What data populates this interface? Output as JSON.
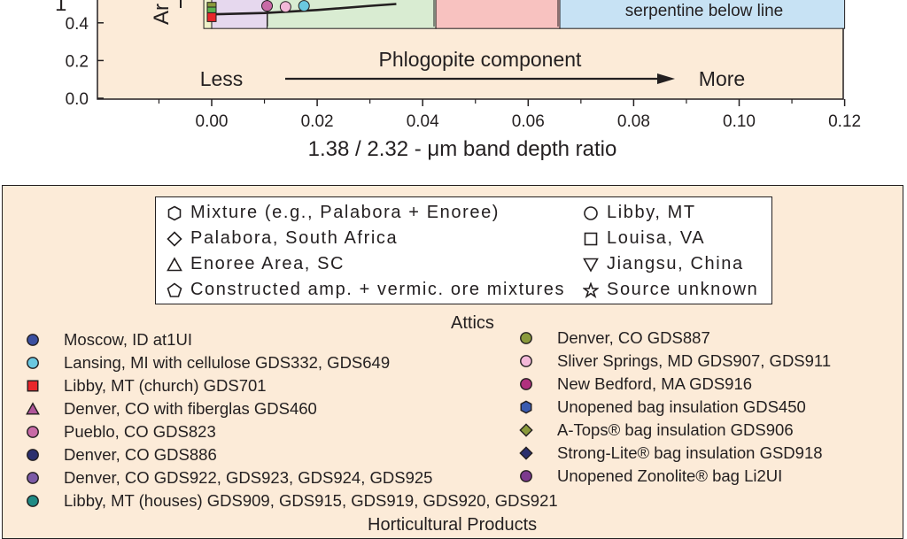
{
  "chart_data": {
    "type": "scatter",
    "xlabel": "1.38 / 2.32 - μm band depth ratio",
    "ylabel_fragment": "1",
    "ylabel_rotated_fragment": "Ar",
    "xlim": [
      -0.015,
      0.12
    ],
    "ylim": [
      0.0,
      0.5
    ],
    "x_ticks": [
      "0.00",
      "0.02",
      "0.04",
      "0.06",
      "0.08",
      "0.10",
      "0.12"
    ],
    "y_ticks": [
      "0.0",
      "0.2",
      "0.4"
    ],
    "annotations": {
      "component": "Phlogopite component",
      "less": "Less",
      "more": "More",
      "serpentine": "serpentine below line"
    },
    "regions": [
      {
        "x": [
          -0.0015,
          0.0
        ],
        "color": "#eef0c8"
      },
      {
        "x": [
          0.0,
          0.0105
        ],
        "color": "#e6d8ee"
      },
      {
        "x": [
          0.0105,
          0.0425
        ],
        "color": "#d9ecd2"
      },
      {
        "x": [
          0.0425,
          0.066
        ],
        "color": "#f8c2c0"
      },
      {
        "x": [
          0.066,
          0.12
        ],
        "color": "#c7e2f4"
      }
    ],
    "region_bottom": 0.37,
    "curve": [
      [
        0.0,
        0.445
      ],
      [
        0.01,
        0.452
      ],
      [
        0.02,
        0.468
      ],
      [
        0.03,
        0.49
      ],
      [
        0.035,
        0.5
      ]
    ],
    "points": [
      {
        "x": 0.0,
        "y": 0.485,
        "shape": "square",
        "color": "#8a9a3b"
      },
      {
        "x": 0.0,
        "y": 0.46,
        "shape": "square",
        "color": "#5ab150"
      },
      {
        "x": 0.0,
        "y": 0.43,
        "shape": "square",
        "color": "#e8262b"
      },
      {
        "x": 0.0105,
        "y": 0.49,
        "shape": "circle",
        "color": "#c86aa6"
      },
      {
        "x": 0.014,
        "y": 0.485,
        "shape": "circle",
        "color": "#f3b8d8"
      },
      {
        "x": 0.0175,
        "y": 0.49,
        "shape": "circle",
        "color": "#6ac8e0"
      }
    ]
  },
  "legend": {
    "shapes_left": [
      {
        "icon": "hexagon",
        "label": "Mixture (e.g., Palabora + Enoree)"
      },
      {
        "icon": "diamond",
        "label": "Palabora, South Africa"
      },
      {
        "icon": "triangle-up",
        "label": "Enoree Area, SC"
      },
      {
        "icon": "pentagon",
        "label": "Constructed amp. + vermic. ore mixtures"
      }
    ],
    "shapes_right": [
      {
        "icon": "circle",
        "label": "Libby, MT"
      },
      {
        "icon": "square",
        "label": "Louisa, VA"
      },
      {
        "icon": "triangle-down",
        "label": "Jiangsu, China"
      },
      {
        "icon": "star",
        "label": "Source unknown"
      }
    ],
    "attics_heading": "Attics",
    "attics_left": [
      {
        "icon": "circle",
        "color": "#3b4fa0",
        "label": "Moscow, ID at1UI"
      },
      {
        "icon": "circle",
        "color": "#6ac8e0",
        "label": "Lansing, MI with cellulose GDS332, GDS649"
      },
      {
        "icon": "square",
        "color": "#e8262b",
        "label": "Libby, MT (church) GDS701"
      },
      {
        "icon": "triangle",
        "color": "#b0559a",
        "label": "Denver, CO with fiberglas GDS460"
      },
      {
        "icon": "circle",
        "color": "#c86aa6",
        "label": "Pueblo, CO GDS823"
      },
      {
        "icon": "circle",
        "color": "#2b2f6e",
        "label": "Denver, CO GDS886"
      },
      {
        "icon": "circle",
        "color": "#7c5aa6",
        "label": "Denver, CO GDS922, GDS923, GDS924, GDS925"
      },
      {
        "icon": "circle",
        "color": "#1f8a84",
        "label": "Libby, MT (houses) GDS909, GDS915, GDS919, GDS920, GDS921"
      }
    ],
    "attics_right": [
      {
        "icon": "circle",
        "color": "#8a9a3b",
        "label": "Denver, CO GDS887"
      },
      {
        "icon": "circle",
        "color": "#f3b8d8",
        "label": "Sliver Springs, MD GDS907, GDS911"
      },
      {
        "icon": "circle",
        "color": "#b0307e",
        "label": "New Bedford, MA GDS916"
      },
      {
        "icon": "hexagon",
        "color": "#3a5bb0",
        "label": "Unopened bag insulation GDS450"
      },
      {
        "icon": "diamond",
        "color": "#8a9a3b",
        "label": "A-Tops® bag insulation GDS906"
      },
      {
        "icon": "diamond",
        "color": "#2b2f6e",
        "label": "Strong-Lite® bag insulation GSD918"
      },
      {
        "icon": "circle",
        "color": "#7c3a8e",
        "label": "Unopened Zonolite® bag Li2UI"
      }
    ],
    "horticultural_heading": "Horticultural Products"
  }
}
